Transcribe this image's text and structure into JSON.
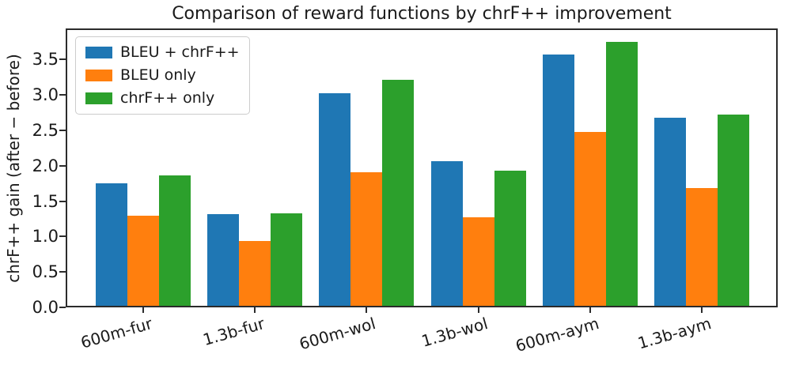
{
  "chart_data": {
    "type": "bar",
    "title": "Comparison of reward functions by chrF++ improvement",
    "xlabel": "",
    "ylabel": "chrF++ gain (after − before)",
    "categories": [
      "600m-fur",
      "1.3b-fur",
      "600m-wol",
      "1.3b-wol",
      "600m-aym",
      "1.3b-aym"
    ],
    "series": [
      {
        "name": "BLEU + chrF++",
        "color": "#1f77b4",
        "values": [
          1.75,
          1.32,
          3.03,
          2.07,
          3.57,
          2.68
        ]
      },
      {
        "name": "BLEU only",
        "color": "#ff7f0e",
        "values": [
          1.3,
          0.94,
          1.91,
          1.27,
          2.48,
          1.68
        ]
      },
      {
        "name": "chrF++ only",
        "color": "#2ca02c",
        "values": [
          1.86,
          1.33,
          3.22,
          1.93,
          3.75,
          2.72
        ]
      }
    ],
    "ylim": [
      0,
      3.94
    ],
    "yticks": [
      0.0,
      0.5,
      1.0,
      1.5,
      2.0,
      2.5,
      3.0,
      3.5
    ],
    "ytick_format_decimals": 1,
    "x_tick_rotation_deg": 16,
    "grid": false,
    "legend_position": "upper left",
    "axis_color": "#2b2b2b"
  }
}
